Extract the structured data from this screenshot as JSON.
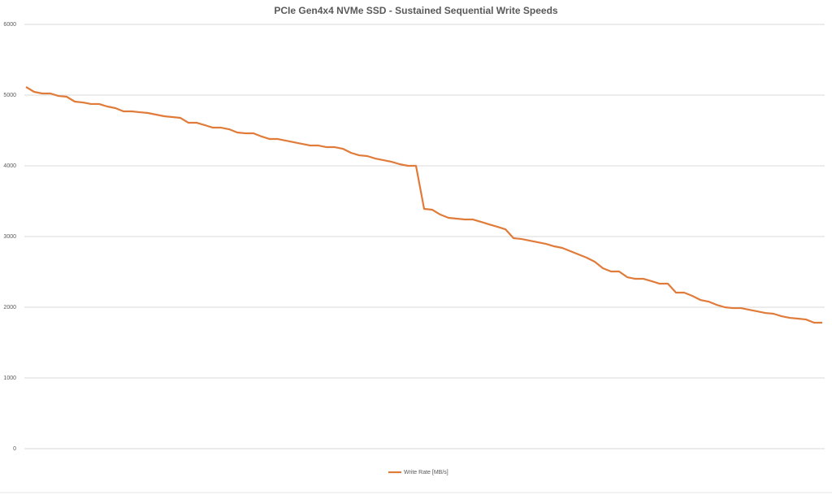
{
  "chart_data": {
    "type": "line",
    "title": "PCIe Gen4x4 NVMe SSD - Sustained Sequential Write Speeds",
    "series": [
      {
        "name": "Write Rate [MB/s]",
        "color": "#e07b39",
        "values": [
          5115,
          5046,
          5023,
          5023,
          4988,
          4977,
          4908,
          4896,
          4874,
          4874,
          4839,
          4816,
          4770,
          4770,
          4758,
          4747,
          4724,
          4701,
          4690,
          4678,
          4609,
          4609,
          4575,
          4540,
          4540,
          4517,
          4471,
          4460,
          4460,
          4414,
          4379,
          4379,
          4356,
          4333,
          4310,
          4287,
          4287,
          4264,
          4264,
          4241,
          4184,
          4149,
          4138,
          4103,
          4080,
          4057,
          4023,
          4000,
          4000,
          3391,
          3379,
          3310,
          3264,
          3253,
          3241,
          3241,
          3207,
          3172,
          3138,
          3103,
          2977,
          2965,
          2942,
          2919,
          2896,
          2862,
          2839,
          2793,
          2747,
          2701,
          2644,
          2552,
          2506,
          2506,
          2425,
          2402,
          2402,
          2368,
          2333,
          2333,
          2207,
          2207,
          2161,
          2103,
          2080,
          2034,
          2000,
          1988,
          1988,
          1965,
          1942,
          1919,
          1908,
          1873,
          1850,
          1839,
          1827,
          1782,
          1782
        ]
      }
    ],
    "ylim": [
      0,
      6000
    ],
    "yticks": [
      0,
      1000,
      2000,
      3000,
      4000,
      5000,
      6000
    ],
    "grid": true,
    "legend": "bottom"
  }
}
